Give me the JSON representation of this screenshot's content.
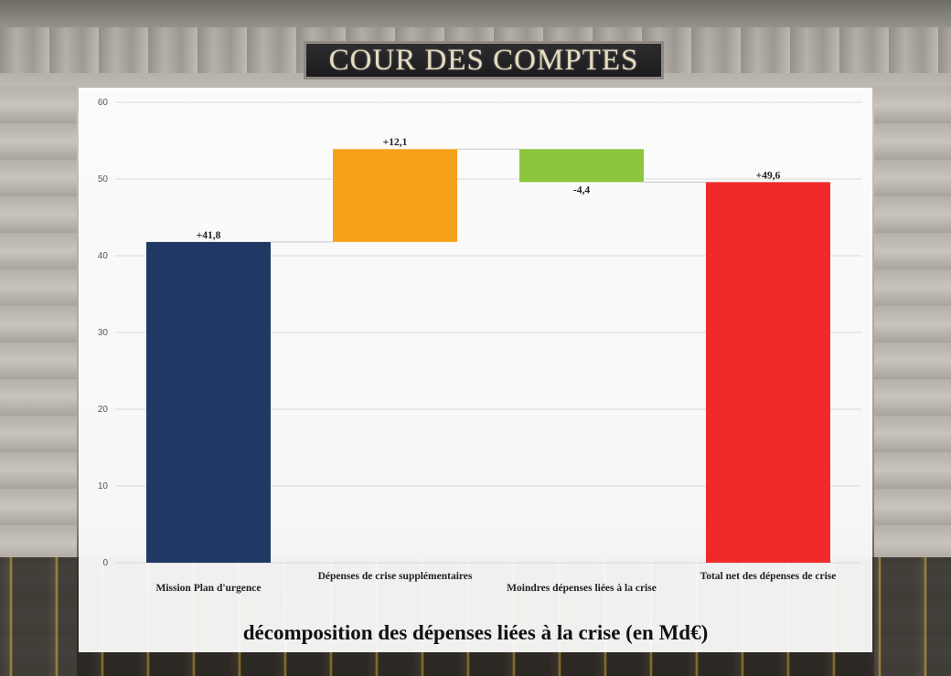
{
  "sign": {
    "text": "COUR DES COMPTES"
  },
  "chart_data": {
    "type": "bar",
    "subtype": "waterfall",
    "title": "décomposition des dépenses liées à la crise (en Md€)",
    "xlabel": "",
    "ylabel": "",
    "ylim": [
      0,
      60
    ],
    "yticks": [
      0,
      10,
      20,
      30,
      40,
      50,
      60
    ],
    "grid": true,
    "categories": [
      "Mission Plan d'urgence",
      "Dépenses de crise supplémentaires",
      "Moindres dépenses liées à la crise",
      "Total net des dépenses de crise"
    ],
    "bars": [
      {
        "start": 0,
        "end": 41.8,
        "label": "+41,8",
        "color": "#1f3864"
      },
      {
        "start": 41.8,
        "end": 53.9,
        "label": "+12,1",
        "color": "#f7a11a"
      },
      {
        "start": 53.9,
        "end": 49.6,
        "label": "-4,4",
        "color": "#8cc63f"
      },
      {
        "start": 0,
        "end": 49.6,
        "label": "+49,6",
        "color": "#f02a2a"
      }
    ]
  }
}
